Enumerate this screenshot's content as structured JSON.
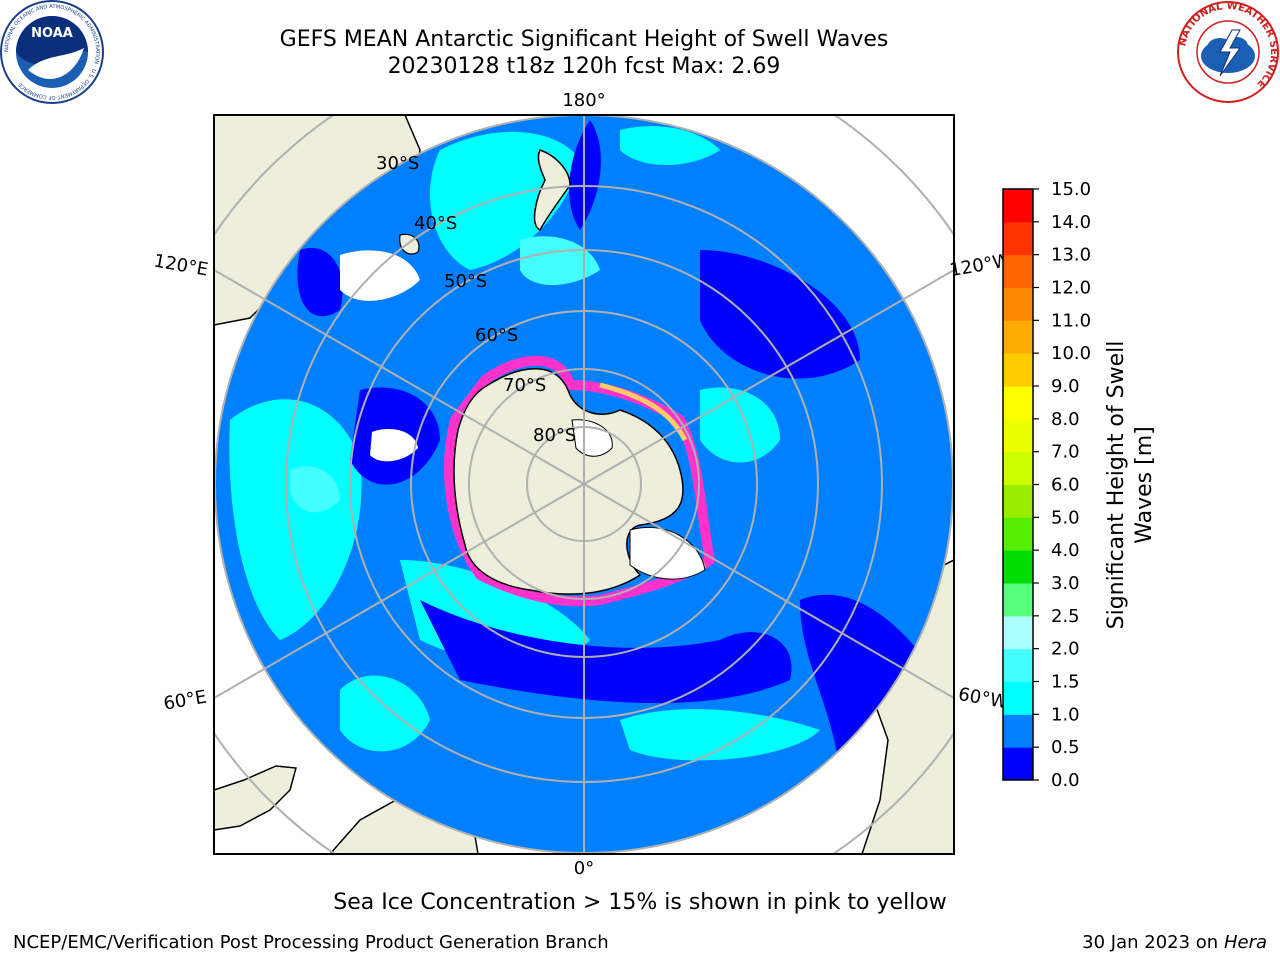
{
  "title": {
    "line1": "GEFS MEAN Antarctic Significant Height of Swell Waves",
    "line2": "20230128 t18z 120h fcst   Max: 2.69"
  },
  "map": {
    "projection": "south-polar-stereographic",
    "longitude_labels": {
      "top": "180°",
      "bottom": "0°",
      "left_upper": "120°E",
      "left_lower": "60°E",
      "right_upper": "120°W",
      "right_lower": "60°W"
    },
    "latitude_labels": [
      "30°S",
      "40°S",
      "50°S",
      "60°S",
      "70°S",
      "80°S"
    ],
    "colors": {
      "land": "#eeeedd",
      "sea_ice_edge": "#ff33cc",
      "grid": "#b0b0b0"
    }
  },
  "colorbar": {
    "label_line1": "Significant Height of Swell",
    "label_line2": "Waves [m]",
    "ticks": [
      "0.0",
      "0.5",
      "1.0",
      "1.5",
      "2.0",
      "2.5",
      "3.0",
      "4.0",
      "5.0",
      "6.0",
      "7.0",
      "8.0",
      "9.0",
      "10.0",
      "11.0",
      "12.0",
      "13.0",
      "14.0",
      "15.0"
    ],
    "colors": [
      "#0000ff",
      "#0080ff",
      "#00ffff",
      "#44ffff",
      "#aaffff",
      "#55ff80",
      "#00dd00",
      "#55ee00",
      "#99ee00",
      "#ccff00",
      "#eeff00",
      "#ffff00",
      "#ffcc00",
      "#ffaa00",
      "#ff8800",
      "#ff6600",
      "#ff3300",
      "#ff0000"
    ]
  },
  "note": "Sea Ice Concentration > 15% is shown in pink to yellow",
  "footer": {
    "left": "NCEP/EMC/Verification Post Processing Product Generation Branch",
    "right_prefix": "30 Jan 2023 on ",
    "right_host": "Hera"
  },
  "logos": {
    "noaa": "NOAA",
    "noaa_ring": "NATIONAL OCEANIC AND ATMOSPHERIC ADMINISTRATION · U.S. DEPARTMENT OF COMMERCE",
    "nws_ring": "NATIONAL WEATHER SERVICE"
  }
}
